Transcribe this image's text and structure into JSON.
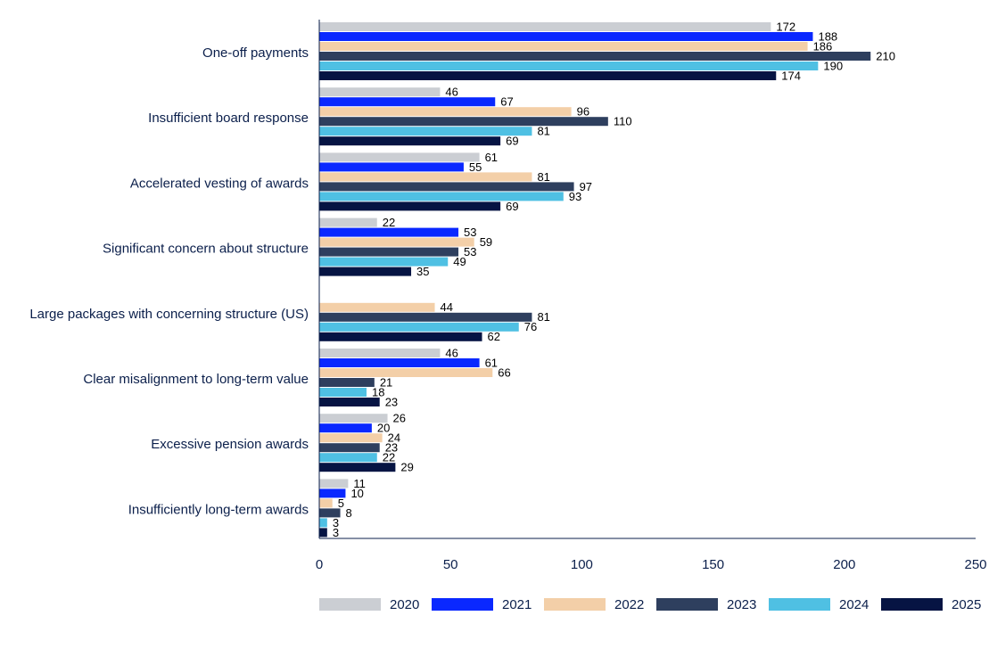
{
  "chart_data": {
    "type": "bar",
    "orientation": "horizontal",
    "title": "",
    "xlabel": "",
    "ylabel": "",
    "xlim": [
      0,
      250
    ],
    "xticks": [
      0,
      50,
      100,
      150,
      200,
      250
    ],
    "grid": false,
    "legend_position": "bottom",
    "categories": [
      "One-off payments",
      "Insufficient board response",
      "Accelerated vesting of awards",
      "Significant concern about structure",
      "Large packages with concerning structure (US)",
      "Clear misalignment to long-term value",
      "Excessive pension awards",
      "Insufficiently long-term awards"
    ],
    "series": [
      {
        "name": "2020",
        "color": "#cbced3",
        "values": [
          172,
          46,
          61,
          22,
          null,
          46,
          26,
          11
        ]
      },
      {
        "name": "2021",
        "color": "#0a28ff",
        "values": [
          188,
          67,
          55,
          53,
          null,
          61,
          20,
          10
        ]
      },
      {
        "name": "2022",
        "color": "#f3cfa8",
        "values": [
          186,
          96,
          81,
          59,
          44,
          66,
          24,
          5
        ]
      },
      {
        "name": "2023",
        "color": "#2e3f5e",
        "values": [
          210,
          110,
          97,
          53,
          81,
          21,
          23,
          8
        ]
      },
      {
        "name": "2024",
        "color": "#4fc0e3",
        "values": [
          190,
          81,
          93,
          49,
          76,
          18,
          22,
          3
        ]
      },
      {
        "name": "2025",
        "color": "#061443",
        "values": [
          174,
          69,
          69,
          35,
          62,
          23,
          29,
          3
        ]
      }
    ]
  }
}
